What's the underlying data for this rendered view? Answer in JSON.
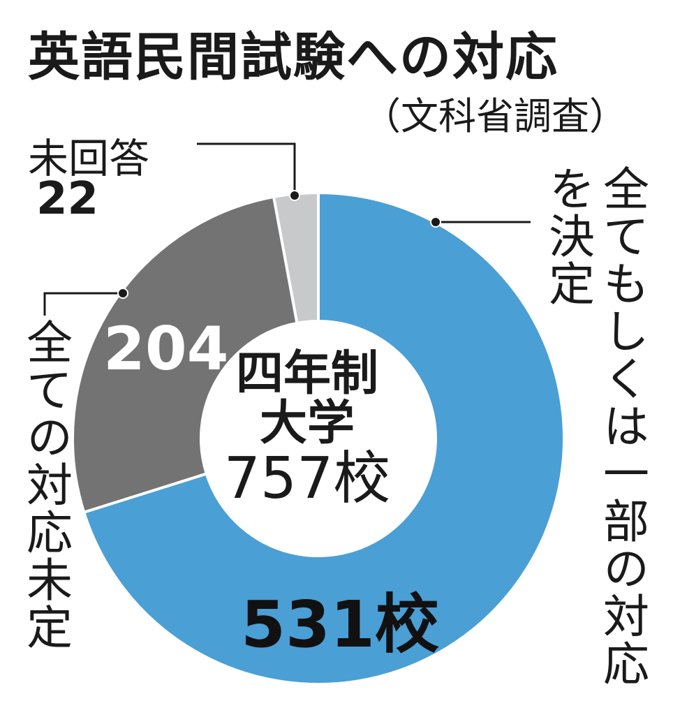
{
  "title": "英語民間試験への対応",
  "subtitle": "（文科省調査）",
  "center": {
    "line1": "四年制",
    "line2": "大学",
    "line3": "757校"
  },
  "labels": {
    "decided": "全てもしくは一部の対応を決定",
    "decided_col1": "全てもしくは一部の対応",
    "decided_col2": "を決定",
    "undecided": "全ての対応未定",
    "unanswered": "未回答",
    "unanswered_value": "22",
    "value_204": "204",
    "value_531": "531校"
  },
  "colors": {
    "decided": "#4a9fd5",
    "undecided": "#737373",
    "unanswered": "#c8c9cb"
  },
  "chart_data": {
    "type": "pie",
    "donut": true,
    "total": 757,
    "slices": [
      {
        "name": "全てもしくは一部の対応を決定",
        "value": 531,
        "color": "#4a9fd5"
      },
      {
        "name": "全ての対応未定",
        "value": 204,
        "color": "#737373"
      },
      {
        "name": "未回答",
        "value": 22,
        "color": "#c8c9cb"
      }
    ]
  }
}
